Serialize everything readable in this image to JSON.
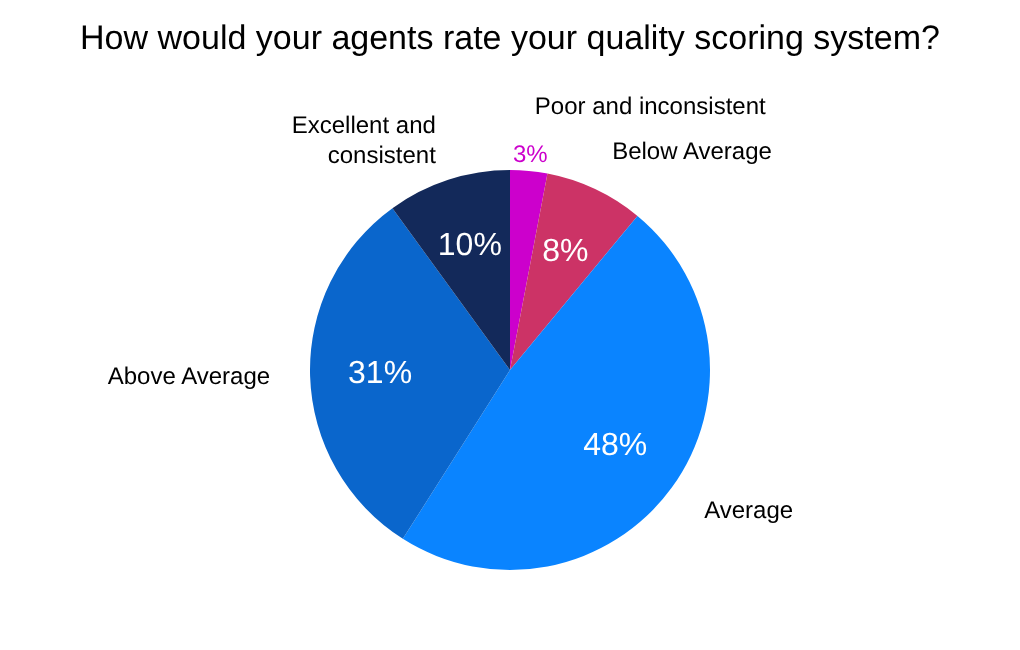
{
  "chart_data": {
    "type": "pie",
    "title": "How would your agents rate your quality scoring system?",
    "categories": [
      "Poor and inconsistent",
      "Below Average",
      "Average",
      "Above Average",
      "Excellent and consistent"
    ],
    "values": [
      3,
      8,
      48,
      31,
      10
    ],
    "colors": [
      "#cc00cc",
      "#cc3366",
      "#0a84ff",
      "#0a66cc",
      "#13295a"
    ],
    "value_labels": [
      "3%",
      "8%",
      "48%",
      "31%",
      "10%"
    ],
    "legend": false
  }
}
